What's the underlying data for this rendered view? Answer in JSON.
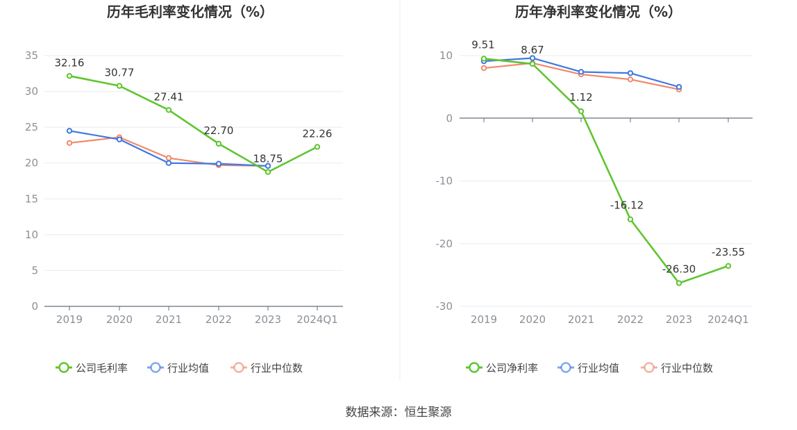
{
  "chart_data": [
    {
      "type": "line",
      "title": "历年毛利率变化情况（%）",
      "categories": [
        "2019",
        "2020",
        "2021",
        "2022",
        "2023",
        "2024Q1"
      ],
      "ylim": [
        0,
        35
      ],
      "yticks": [
        0,
        5,
        10,
        15,
        20,
        25,
        30,
        35
      ],
      "series": [
        {
          "name": "公司毛利率",
          "color": "#5ec52f",
          "values": [
            32.16,
            30.77,
            27.41,
            22.7,
            18.75,
            22.26
          ],
          "labels": [
            "32.16",
            "30.77",
            "27.41",
            "22.70",
            "18.75",
            "22.26"
          ]
        },
        {
          "name": "行业均值",
          "color": "#3f78e0",
          "values": [
            24.5,
            23.3,
            20.0,
            19.9,
            19.6,
            null
          ]
        },
        {
          "name": "行业中位数",
          "color": "#f0896a",
          "values": [
            22.8,
            23.6,
            20.7,
            19.7,
            19.6,
            null
          ]
        }
      ],
      "legend_position": "bottom"
    },
    {
      "type": "line",
      "title": "历年净利率变化情况（%）",
      "categories": [
        "2019",
        "2020",
        "2021",
        "2022",
        "2023",
        "2024Q1"
      ],
      "ylim": [
        -30,
        10
      ],
      "yticks": [
        -30,
        -20,
        -10,
        0,
        10
      ],
      "series": [
        {
          "name": "公司净利率",
          "color": "#5ec52f",
          "values": [
            9.51,
            8.67,
            1.12,
            -16.12,
            -26.3,
            -23.55
          ],
          "labels": [
            "9.51",
            "8.67",
            "1.12",
            "-16.12",
            "-26.30",
            "-23.55"
          ]
        },
        {
          "name": "行业均值",
          "color": "#3f78e0",
          "values": [
            9.1,
            9.6,
            7.4,
            7.2,
            5.0,
            null
          ]
        },
        {
          "name": "行业中位数",
          "color": "#f0896a",
          "values": [
            8.0,
            8.8,
            7.0,
            6.2,
            4.6,
            null
          ]
        }
      ],
      "legend_position": "bottom"
    }
  ],
  "footer": {
    "source": "数据来源：恒生聚源"
  }
}
